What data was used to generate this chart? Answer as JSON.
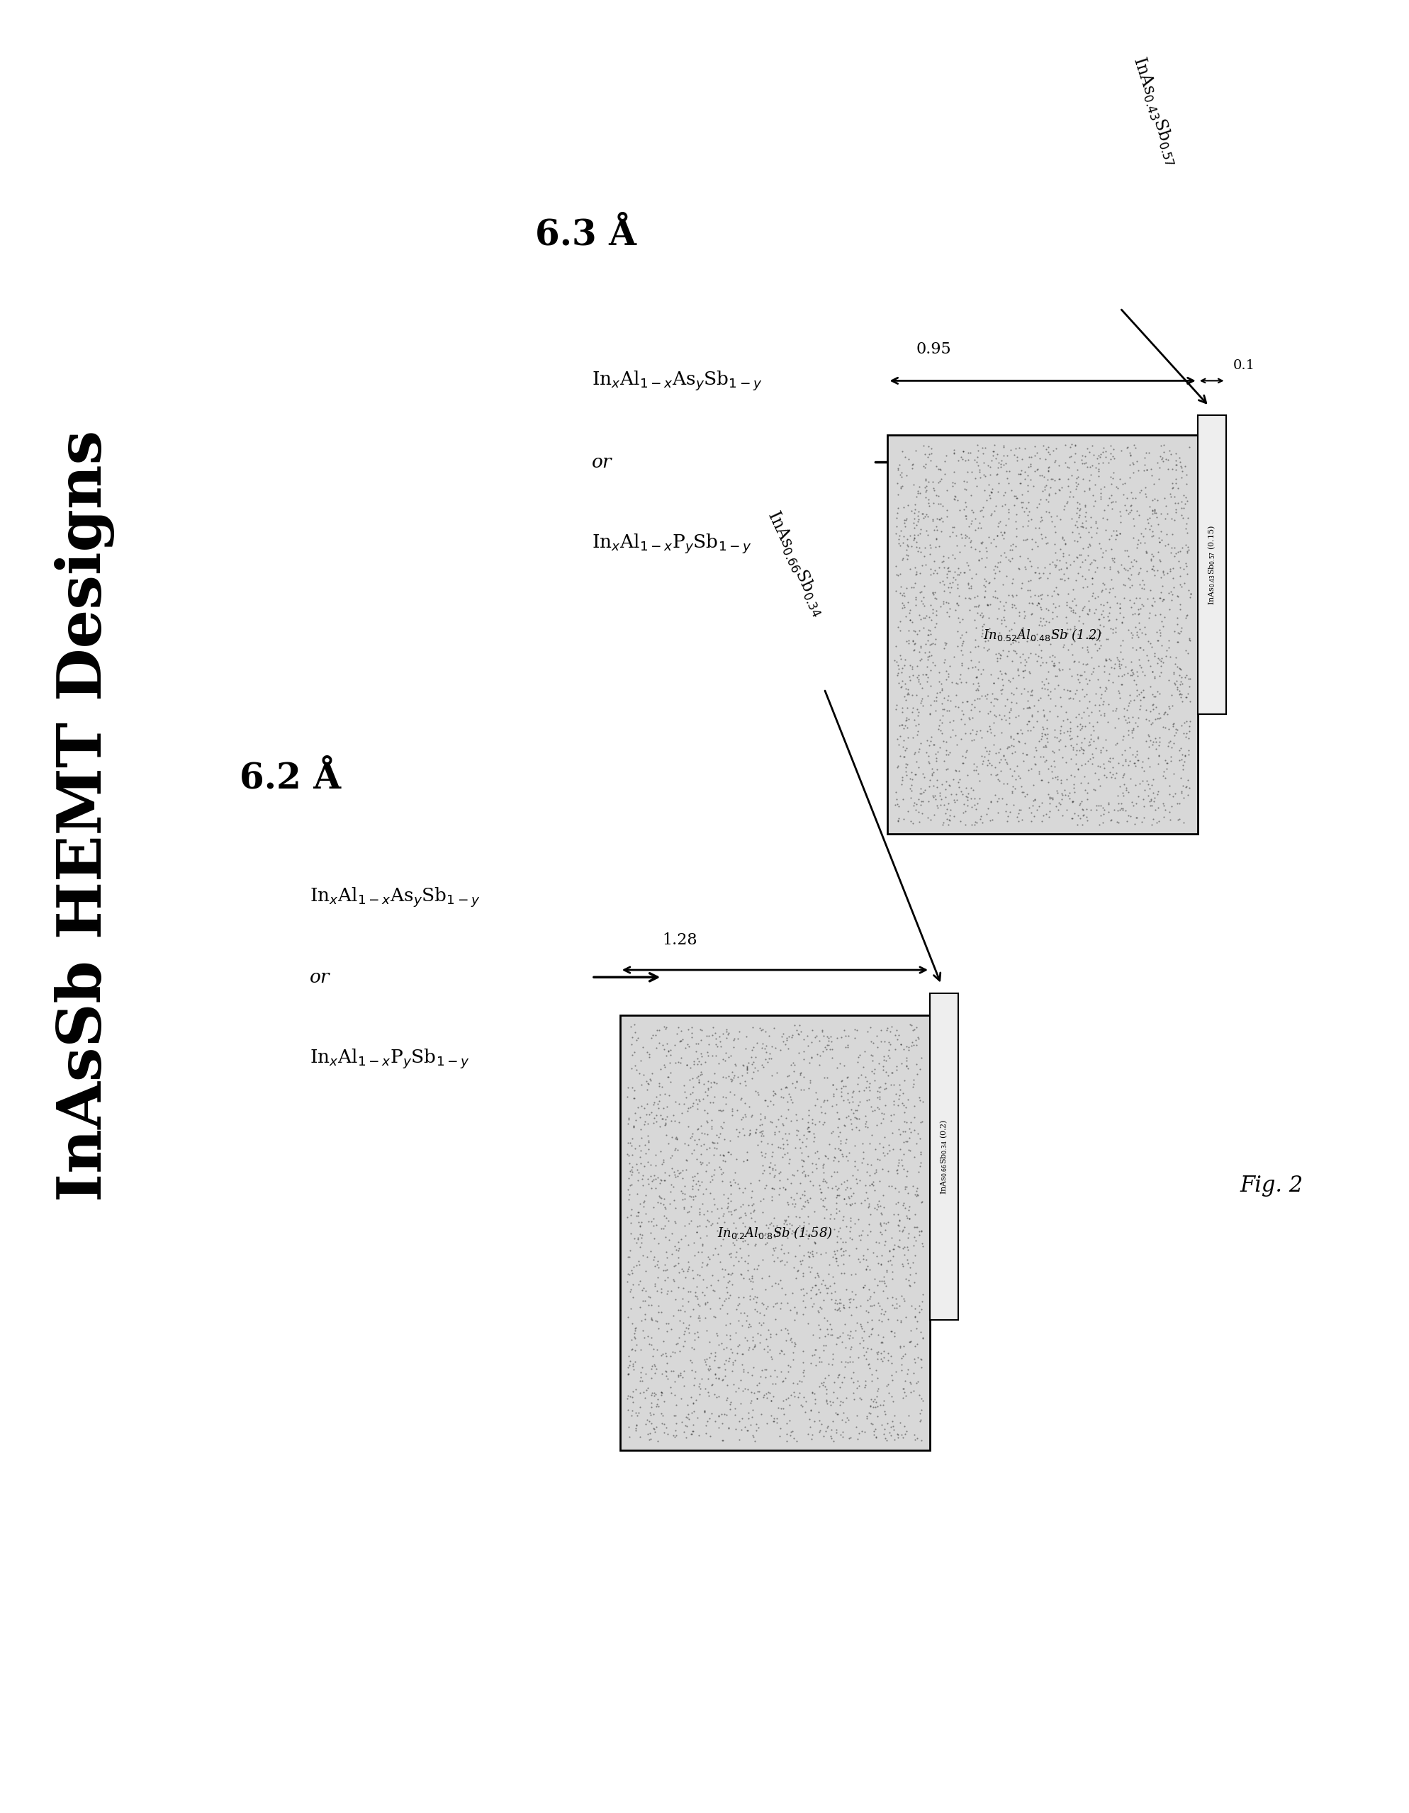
{
  "title": "InAsSb HEMT Designs",
  "fig_label": "Fig. 2",
  "bg_color": "#ffffff",
  "section_62": {
    "angstrom_label": "6.2 Å",
    "barrier_label1": "In$_x$Al$_{1-x}$As$_y$Sb$_{1-y}$",
    "barrier_label2": "or",
    "barrier_label3": "In$_x$Al$_{1-x}$P$_y$Sb$_{1-y}$",
    "channel_label": "In$_{0.2}$Al$_{0.8}$Sb (1.58)",
    "cap_label": "InAs$_{0.66}$Sb$_{0.34}$ (0.2)",
    "arrow_dim_label": "1.28",
    "channel_annotation": "InAs$_{0.66}$Sb$_{0.34}$"
  },
  "section_63": {
    "angstrom_label": "6.3 Å",
    "barrier_label1": "In$_x$Al$_{1-x}$As$_y$Sb$_{1-y}$",
    "barrier_label2": "or",
    "barrier_label3": "In$_x$Al$_{1-x}$P$_y$Sb$_{1-y}$",
    "channel_label": "In$_{0.52}$Al$_{0.48}$Sb (1.2)",
    "cap_label": "InAs$_{0.43}$Sb$_{0.57}$ (0.15)",
    "arrow_dim_label": "0.95",
    "arrow_dim_label2": "0.1",
    "channel_annotation": "InAs$_{0.43}$Sb$_{0.57}$"
  }
}
